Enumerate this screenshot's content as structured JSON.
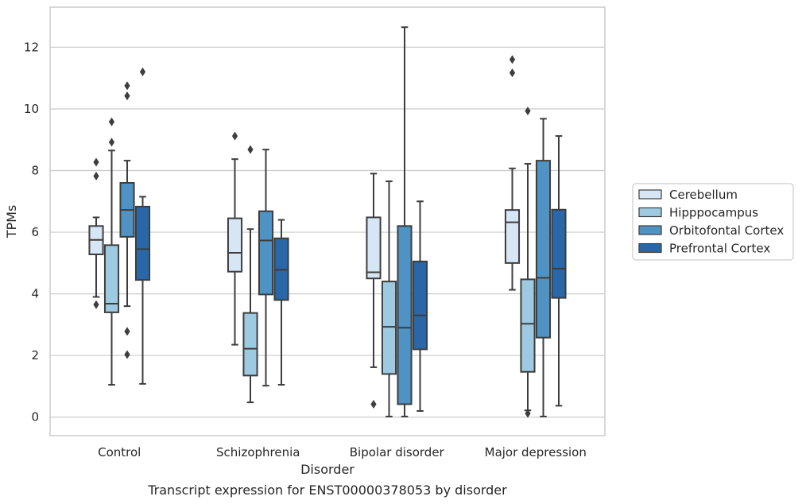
{
  "chart_data": {
    "type": "box",
    "title": "",
    "caption": "Transcript expression for ENST00000378053 by disorder",
    "xlabel": "Disorder",
    "ylabel": "TPMs",
    "ylim": [
      -0.6,
      13.3
    ],
    "yticks": [
      0,
      2,
      4,
      6,
      8,
      10,
      12
    ],
    "grid": "horizontal",
    "legend_position": "right",
    "categories": [
      "Control",
      "Schizophrenia",
      "Bipolar disorder",
      "Major depression"
    ],
    "series": [
      {
        "name": "Cerebellum",
        "color": "#d6e6f4",
        "boxes": [
          {
            "whislo": 3.9,
            "q1": 5.28,
            "med": 5.75,
            "q3": 6.2,
            "whishi": 6.48,
            "fliers": [
              3.65,
              7.82,
              8.27
            ]
          },
          {
            "whislo": 2.35,
            "q1": 4.72,
            "med": 5.33,
            "q3": 6.45,
            "whishi": 8.37,
            "fliers": [
              9.12
            ]
          },
          {
            "whislo": 1.62,
            "q1": 4.5,
            "med": 4.7,
            "q3": 6.48,
            "whishi": 7.9,
            "fliers": [
              0.42
            ]
          },
          {
            "whislo": 4.13,
            "q1": 5.0,
            "med": 6.32,
            "q3": 6.72,
            "whishi": 8.07,
            "fliers": [
              11.17,
              11.6
            ]
          }
        ]
      },
      {
        "name": "Hipppocampus",
        "color": "#9ecae1",
        "boxes": [
          {
            "whislo": 1.05,
            "q1": 3.4,
            "med": 3.68,
            "q3": 5.58,
            "whishi": 8.65,
            "fliers": [
              8.92,
              9.58
            ]
          },
          {
            "whislo": 0.48,
            "q1": 1.35,
            "med": 2.22,
            "q3": 3.38,
            "whishi": 6.1,
            "fliers": [
              8.68
            ]
          },
          {
            "whislo": 0.02,
            "q1": 1.4,
            "med": 2.93,
            "q3": 4.4,
            "whishi": 7.65,
            "fliers": []
          },
          {
            "whislo": 0.22,
            "q1": 1.47,
            "med": 3.03,
            "q3": 4.47,
            "whishi": 8.22,
            "fliers": [
              0.12,
              9.93
            ]
          }
        ]
      },
      {
        "name": "Orbitofontal Cortex",
        "color": "#4f92c4",
        "boxes": [
          {
            "whislo": 3.6,
            "q1": 5.85,
            "med": 6.72,
            "q3": 7.6,
            "whishi": 8.32,
            "fliers": [
              2.03,
              2.78,
              10.42,
              10.75
            ]
          },
          {
            "whislo": 1.02,
            "q1": 3.98,
            "med": 5.73,
            "q3": 6.68,
            "whishi": 8.68,
            "fliers": []
          },
          {
            "whislo": 0.02,
            "q1": 0.42,
            "med": 2.9,
            "q3": 6.2,
            "whishi": 12.65,
            "fliers": []
          },
          {
            "whislo": 0.02,
            "q1": 2.58,
            "med": 4.52,
            "q3": 8.32,
            "whishi": 9.68,
            "fliers": []
          }
        ]
      },
      {
        "name": "Prefrontal Cortex",
        "color": "#2967a8",
        "boxes": [
          {
            "whislo": 1.08,
            "q1": 4.45,
            "med": 5.45,
            "q3": 6.83,
            "whishi": 7.15,
            "fliers": [
              11.2
            ]
          },
          {
            "whislo": 1.05,
            "q1": 3.8,
            "med": 4.78,
            "q3": 5.8,
            "whishi": 6.4,
            "fliers": []
          },
          {
            "whislo": 0.2,
            "q1": 2.2,
            "med": 3.3,
            "q3": 5.05,
            "whishi": 7.0,
            "fliers": []
          },
          {
            "whislo": 0.37,
            "q1": 3.87,
            "med": 4.82,
            "q3": 6.73,
            "whishi": 9.12,
            "fliers": []
          }
        ]
      }
    ]
  }
}
